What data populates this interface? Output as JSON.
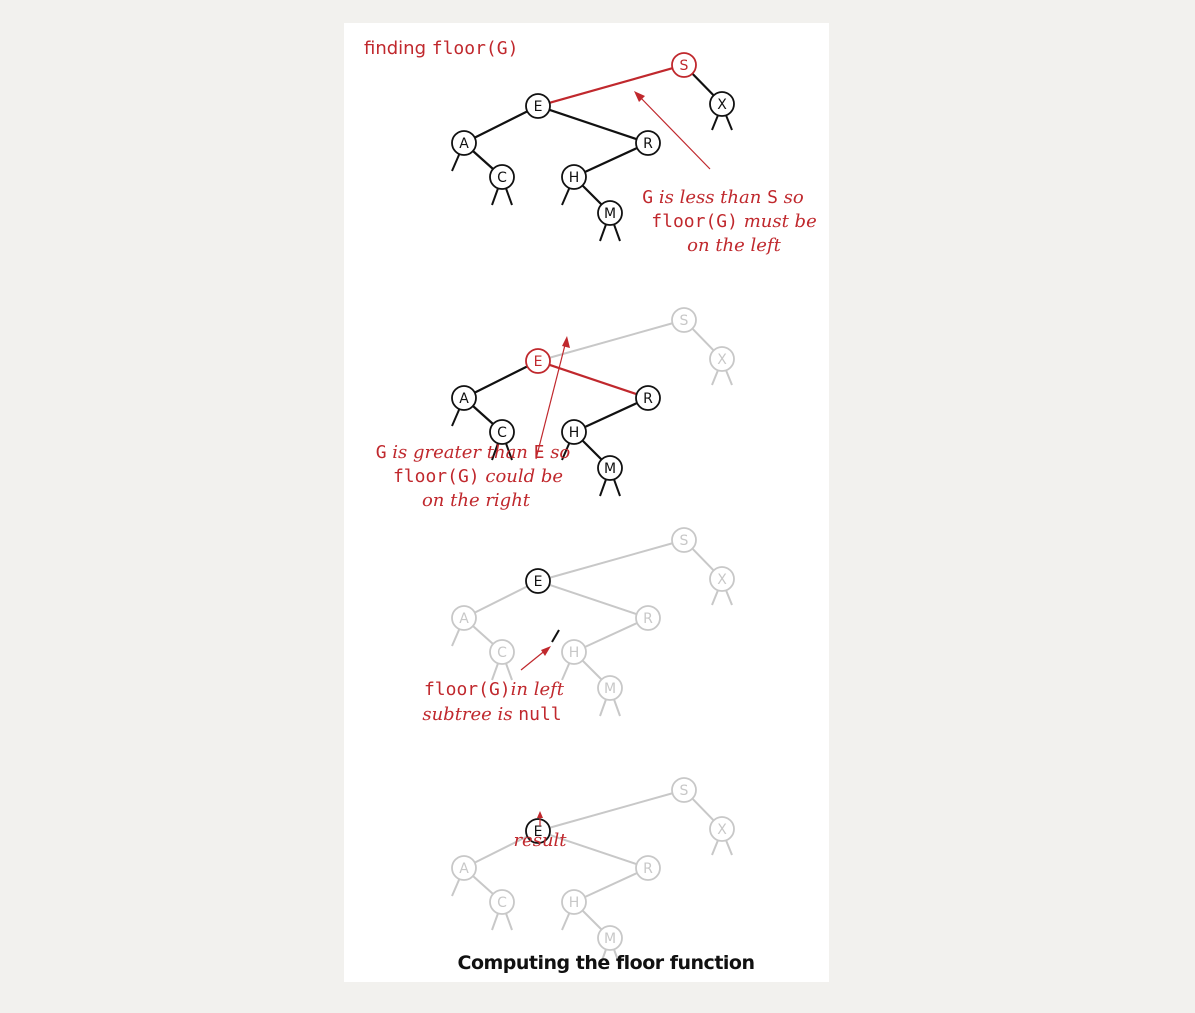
{
  "colors": {
    "accent": "#c0282d",
    "dark": "#111111",
    "faded": "#c8c8c8"
  },
  "header": {
    "prefix": "finding ",
    "code": "floor(G)"
  },
  "steps": [
    {
      "nodes": {
        "S": "S",
        "X": "X",
        "E": "E",
        "A": "A",
        "R": "R",
        "C": "C",
        "H": "H",
        "M": "M"
      },
      "annotation": {
        "line1_code": "G",
        "line1_text": " is less than ",
        "line1_code2": "S",
        "line1_text2": " so",
        "line2_code": "floor(G)",
        "line2_text": " must be",
        "line3_text": "on the left"
      }
    },
    {
      "nodes": {
        "S": "S",
        "X": "X",
        "E": "E",
        "A": "A",
        "R": "R",
        "C": "C",
        "H": "H",
        "M": "M"
      },
      "annotation": {
        "line1_code": "G",
        "line1_text": " is greater than ",
        "line1_code2": "E",
        "line1_text2": " so",
        "line2_code": "floor(G)",
        "line2_text": " could be",
        "line3_text": "on the right"
      }
    },
    {
      "nodes": {
        "S": "S",
        "X": "X",
        "E": "E",
        "A": "A",
        "R": "R",
        "C": "C",
        "H": "H",
        "M": "M"
      },
      "annotation": {
        "line1_code": "floor(G)",
        "line1_text": "in left",
        "line2_text": "subtree is ",
        "line2_code": "null"
      }
    },
    {
      "nodes": {
        "S": "S",
        "X": "X",
        "E": "E",
        "A": "A",
        "R": "R",
        "C": "C",
        "H": "H",
        "M": "M"
      },
      "annotation": {
        "result": "result"
      }
    }
  ],
  "caption": "Computing the floor function"
}
